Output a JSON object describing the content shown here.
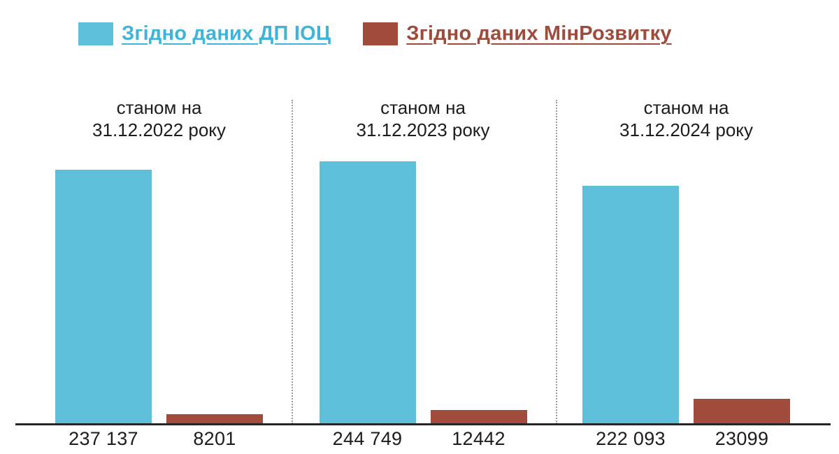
{
  "legend": {
    "items": [
      {
        "label": "Згідно даних ДП ІОЦ",
        "color": "#3FB4D8",
        "swatch_color": "#5EBFDB"
      },
      {
        "label": "Згідно даних МінРозвитку",
        "color": "#9D4B3D",
        "swatch_color": "#A04B3C"
      }
    ]
  },
  "groups": [
    {
      "header_line1": "станом на",
      "header_line2": "31.12.2022 року",
      "value_labels": [
        "237 137",
        "8201"
      ]
    },
    {
      "header_line1": "станом на",
      "header_line2": "31.12.2023 року",
      "value_labels": [
        "244 749",
        "12442"
      ]
    },
    {
      "header_line1": "станом на",
      "header_line2": "31.12.2024 року",
      "value_labels": [
        "222 093",
        "23099"
      ]
    }
  ],
  "chart_data": {
    "type": "bar",
    "categories": [
      "станом на 31.12.2022 року",
      "станом на 31.12.2023 року",
      "станом на 31.12.2024 року"
    ],
    "series": [
      {
        "name": "Згідно даних ДП ІОЦ",
        "values": [
          237137,
          244749,
          222093
        ],
        "color": "#5EBFDB"
      },
      {
        "name": "Згідно даних МінРозвитку",
        "values": [
          8201,
          12442,
          23099
        ],
        "color": "#A04B3C"
      }
    ],
    "value_labels": [
      [
        "237 137",
        "8201"
      ],
      [
        "244 749",
        "12442"
      ],
      [
        "222 093",
        "23099"
      ]
    ],
    "title": "",
    "xlabel": "",
    "ylabel": "",
    "ylim": [
      0,
      250000
    ],
    "grid": false,
    "legend_position": "top"
  },
  "colors": {
    "text": "#1C1C1C",
    "axis": "#262626",
    "separator": "#9B9B9B",
    "background": "#FFFFFF"
  }
}
